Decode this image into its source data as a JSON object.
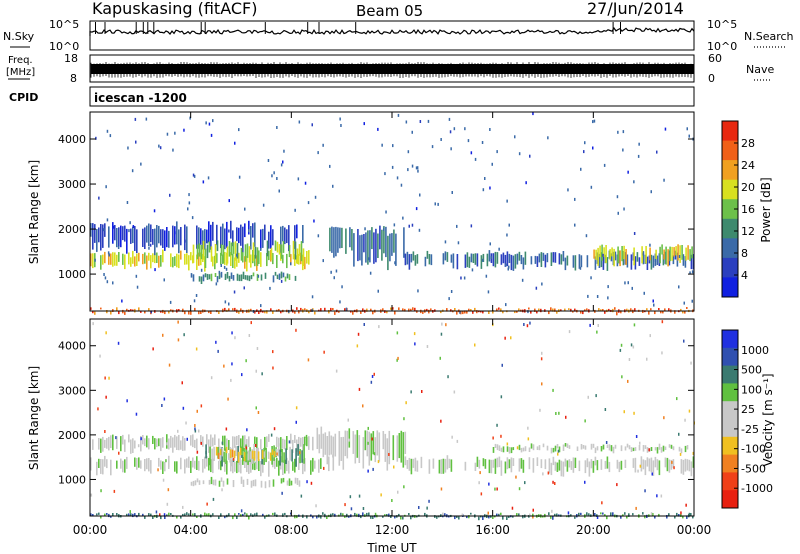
{
  "header": {
    "radar": "Kapuskasing (fitACF)",
    "beam": "Beam 05",
    "date": "27/Jun/2014"
  },
  "strips": {
    "nsky": {
      "label": "N.Sky",
      "ticks": [
        "10^5",
        "10^0"
      ]
    },
    "nsearch": {
      "label": "N.Search",
      "ticks": [
        "10^5",
        "10^0"
      ]
    },
    "freq": {
      "label_line1": "Freq.",
      "label_line2": "[MHz]",
      "ticks": [
        "18",
        "8"
      ]
    },
    "nave": {
      "label": "Nave",
      "ticks": [
        "60",
        "0"
      ]
    },
    "cpid": {
      "label": "CPID",
      "value": "icescan -1200"
    }
  },
  "colors": {
    "power": [
      "#1020e0",
      "#2a3fbf",
      "#3a6aa8",
      "#3e8a6e",
      "#6cc04a",
      "#d8e020",
      "#f0a020",
      "#f06018",
      "#e82810"
    ],
    "velocity": [
      "#2030e0",
      "#3050b0",
      "#3a7a70",
      "#60c040",
      "#c8c8c8",
      "#c8c8c8",
      "#f0c020",
      "#f08020",
      "#f04018",
      "#e82010"
    ]
  },
  "chart_data": [
    {
      "type": "heatmap",
      "name": "power",
      "xlabel": "",
      "ylabel": "Slant Range [km]",
      "xlim": [
        0,
        24
      ],
      "ylim": [
        180,
        4600
      ],
      "yticks": [
        1000,
        2000,
        3000,
        4000
      ],
      "xticks": [
        "00:00",
        "04:00",
        "08:00",
        "12:00",
        "16:00",
        "20:00",
        "00:00"
      ],
      "colorbar": {
        "label": "Power [dB]",
        "ticks": [
          "4",
          "8",
          "12",
          "16",
          "20",
          "24",
          "28"
        ]
      },
      "bands": [
        {
          "t0": 0.0,
          "t1": 8.8,
          "r0": 1150,
          "r1": 1500,
          "level": 5
        },
        {
          "t0": 0.0,
          "t1": 8.5,
          "r0": 1500,
          "r1": 2100,
          "level": 1
        },
        {
          "t0": 4.0,
          "t1": 8.2,
          "r0": 880,
          "r1": 1050,
          "level": 3
        },
        {
          "t0": 4.0,
          "t1": 8.5,
          "r0": 1250,
          "r1": 1700,
          "level": 4
        },
        {
          "t0": 9.5,
          "t1": 12.5,
          "r0": 1200,
          "r1": 2000,
          "level": 2
        },
        {
          "t0": 12.5,
          "t1": 24.0,
          "r0": 1150,
          "r1": 1500,
          "level": 2
        },
        {
          "t0": 20.0,
          "t1": 24.0,
          "r0": 1250,
          "r1": 1650,
          "level": 5
        },
        {
          "t0": 0.0,
          "t1": 24.0,
          "r0": 180,
          "r1": 260,
          "level": 7
        }
      ]
    },
    {
      "type": "heatmap",
      "name": "velocity",
      "xlabel": "Time UT",
      "ylabel": "Slant Range [km]",
      "xlim": [
        0,
        24
      ],
      "ylim": [
        180,
        4600
      ],
      "yticks": [
        1000,
        2000,
        3000,
        4000
      ],
      "xticks": [
        "00:00",
        "04:00",
        "08:00",
        "12:00",
        "16:00",
        "20:00",
        "00:00"
      ],
      "colorbar": {
        "label": "Velocity [m s⁻¹]",
        "ticks": [
          "1000",
          "500",
          "100",
          "25",
          "-25",
          "-100",
          "-500",
          "-1000"
        ]
      },
      "bands": [
        {
          "t0": 0.0,
          "t1": 9.5,
          "r0": 1150,
          "r1": 1500,
          "level": 4
        },
        {
          "t0": 0.0,
          "t1": 9.0,
          "r0": 1650,
          "r1": 2000,
          "level": 4
        },
        {
          "t0": 4.0,
          "t1": 8.5,
          "r0": 880,
          "r1": 1050,
          "level": 4
        },
        {
          "t0": 4.5,
          "t1": 8.5,
          "r0": 1300,
          "r1": 1750,
          "level": 3
        },
        {
          "t0": 5.0,
          "t1": 7.5,
          "r0": 1450,
          "r1": 1700,
          "level": 6
        },
        {
          "t0": 9.0,
          "t1": 12.5,
          "r0": 1300,
          "r1": 2100,
          "level": 4
        },
        {
          "t0": 12.5,
          "t1": 24.0,
          "r0": 1150,
          "r1": 1500,
          "level": 4
        },
        {
          "t0": 16.0,
          "t1": 24.0,
          "r0": 1650,
          "r1": 1800,
          "level": 4
        },
        {
          "t0": 0.0,
          "t1": 24.0,
          "r0": 180,
          "r1": 260,
          "level": 2
        }
      ]
    }
  ]
}
